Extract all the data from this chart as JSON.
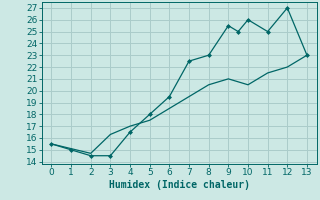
{
  "xlabel": "Humidex (Indice chaleur)",
  "bg_color": "#cce8e4",
  "grid_color": "#aaccca",
  "line_color": "#006666",
  "xlim": [
    -0.5,
    13.5
  ],
  "ylim": [
    13.8,
    27.5
  ],
  "xticks": [
    0,
    1,
    2,
    3,
    4,
    5,
    6,
    7,
    8,
    9,
    10,
    11,
    12,
    13
  ],
  "yticks": [
    14,
    15,
    16,
    17,
    18,
    19,
    20,
    21,
    22,
    23,
    24,
    25,
    26,
    27
  ],
  "line1_x": [
    0,
    1,
    2,
    3,
    4,
    5,
    6,
    7,
    8,
    9,
    9.5,
    10,
    11,
    12,
    13
  ],
  "line1_y": [
    15.5,
    15.0,
    14.5,
    14.5,
    16.5,
    18.0,
    19.5,
    22.5,
    23.0,
    25.5,
    25.0,
    26.0,
    25.0,
    27.0,
    23.0
  ],
  "line2_x": [
    0,
    2,
    3,
    4,
    5,
    6,
    7,
    8,
    9,
    10,
    11,
    12,
    13
  ],
  "line2_y": [
    15.5,
    14.7,
    16.3,
    17.0,
    17.5,
    18.5,
    19.5,
    20.5,
    21.0,
    20.5,
    21.5,
    22.0,
    23.0
  ],
  "tick_fontsize": 6.5,
  "xlabel_fontsize": 7.0
}
